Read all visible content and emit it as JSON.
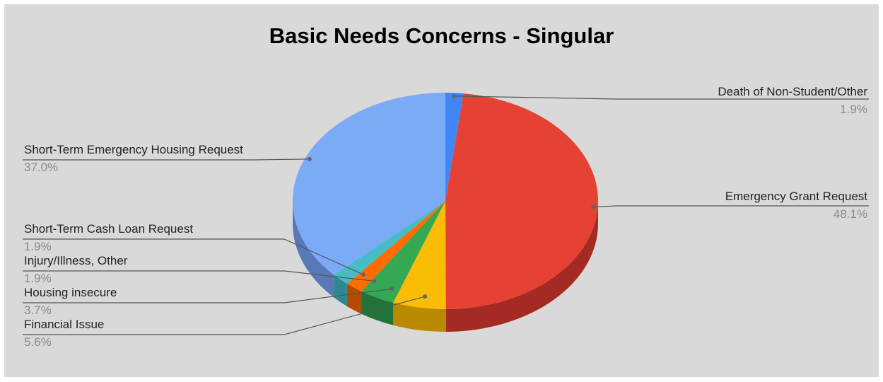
{
  "chart_data": {
    "type": "pie",
    "title": "Basic Needs Concerns - Singular",
    "three_d": true,
    "legend": "labeled slices",
    "slices": [
      {
        "label": "Death of Non-Student/Other",
        "value": 1.9,
        "pct_label": "1.9%",
        "color": "#4285f4",
        "side_color": "#2f62b8"
      },
      {
        "label": "Emergency Grant Request",
        "value": 48.1,
        "pct_label": "48.1%",
        "color": "#e64234",
        "side_color": "#a52a24"
      },
      {
        "label": "Financial Issue",
        "value": 5.6,
        "pct_label": "5.6%",
        "color": "#fbbc05",
        "side_color": "#b98a00"
      },
      {
        "label": "Housing insecure",
        "value": 3.7,
        "pct_label": "3.7%",
        "color": "#34a853",
        "side_color": "#22733a"
      },
      {
        "label": "Injury/Illness, Other",
        "value": 1.9,
        "pct_label": "1.9%",
        "color": "#ff6d01",
        "side_color": "#b34c00"
      },
      {
        "label": "Short-Term Cash Loan Request",
        "value": 1.9,
        "pct_label": "1.9%",
        "color": "#46bdc6",
        "side_color": "#2f8890"
      },
      {
        "label": "Short-Term Emergency Housing Request",
        "value": 37.0,
        "pct_label": "37.0%",
        "color": "#7baaf7",
        "side_color": "#5878b8"
      }
    ]
  }
}
